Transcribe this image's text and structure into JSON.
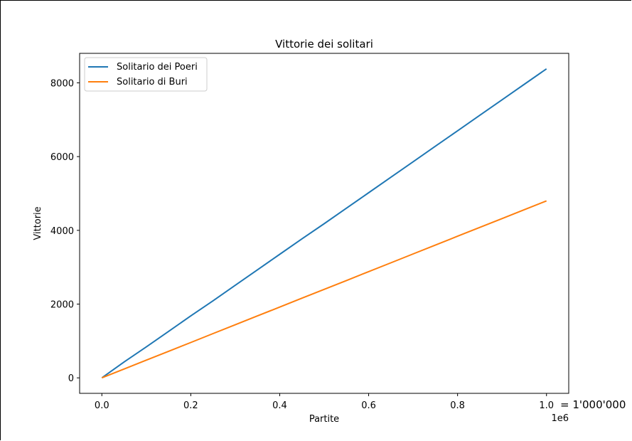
{
  "chart_data": {
    "type": "line",
    "title": "Vittorie dei solitari",
    "xlabel": "Partite",
    "ylabel": "Vittorie",
    "x_offset_text": "1e6",
    "annotation": "= 1'000'000",
    "xlim": [
      -0.05,
      1.05
    ],
    "ylim": [
      -420,
      8800
    ],
    "xticks": [
      0.0,
      0.2,
      0.4,
      0.6,
      0.8,
      1.0
    ],
    "xtick_labels": [
      "0.0",
      "0.2",
      "0.4",
      "0.6",
      "0.8",
      "1.0"
    ],
    "yticks": [
      0,
      2000,
      4000,
      6000,
      8000
    ],
    "ytick_labels": [
      "0",
      "2000",
      "4000",
      "6000",
      "8000"
    ],
    "grid": false,
    "legend_position": "top-left",
    "x": [
      0.0,
      0.05,
      0.1,
      0.15,
      0.2,
      0.25,
      0.3,
      0.35,
      0.4,
      0.45,
      0.5,
      0.55,
      0.6,
      0.65,
      0.7,
      0.75,
      0.8,
      0.85,
      0.9,
      0.95,
      1.0
    ],
    "series": [
      {
        "name": "Solitario dei Poeri",
        "color": "#1f77b4",
        "values": [
          0,
          430,
          840,
          1260,
          1680,
          2090,
          2510,
          2930,
          3350,
          3770,
          4180,
          4600,
          5020,
          5440,
          5860,
          6280,
          6700,
          7120,
          7540,
          7960,
          8380
        ]
      },
      {
        "name": "Solitario di Buri",
        "color": "#ff7f0e",
        "values": [
          0,
          240,
          480,
          720,
          960,
          1200,
          1440,
          1680,
          1920,
          2160,
          2400,
          2640,
          2880,
          3120,
          3360,
          3600,
          3840,
          4080,
          4320,
          4560,
          4800
        ]
      }
    ]
  }
}
